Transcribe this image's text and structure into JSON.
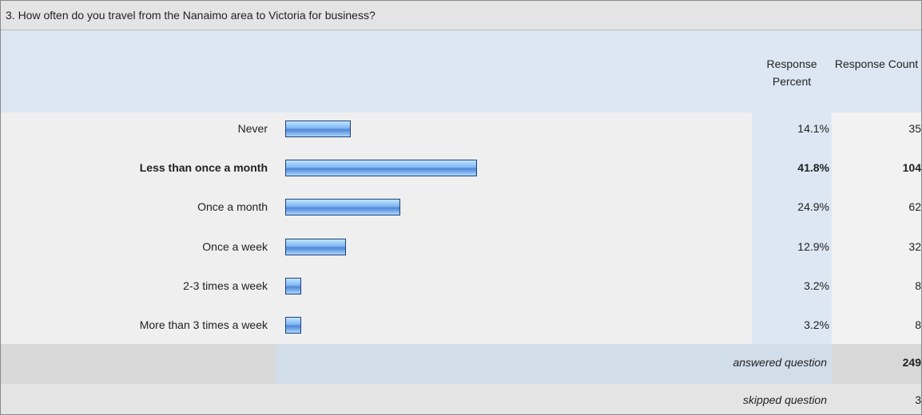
{
  "chart_data": {
    "type": "bar",
    "title": "3. How often do you travel from the Nanaimo area to Victoria for business?",
    "percent_header": "Response Percent",
    "count_header": "Response Count",
    "categories": [
      "Never",
      "Less than once a month",
      "Once a month",
      "Once a week",
      "2-3 times a week",
      "More than 3 times a week"
    ],
    "values": [
      14.1,
      41.8,
      24.9,
      12.9,
      3.2,
      3.2
    ],
    "value_labels": [
      "14.1%",
      "41.8%",
      "24.9%",
      "12.9%",
      "3.2%",
      "3.2%"
    ],
    "counts": [
      35,
      104,
      62,
      32,
      8,
      8
    ],
    "answered_label": "answered question",
    "answered": 249,
    "skipped_label": "skipped question",
    "skipped": 3
  }
}
